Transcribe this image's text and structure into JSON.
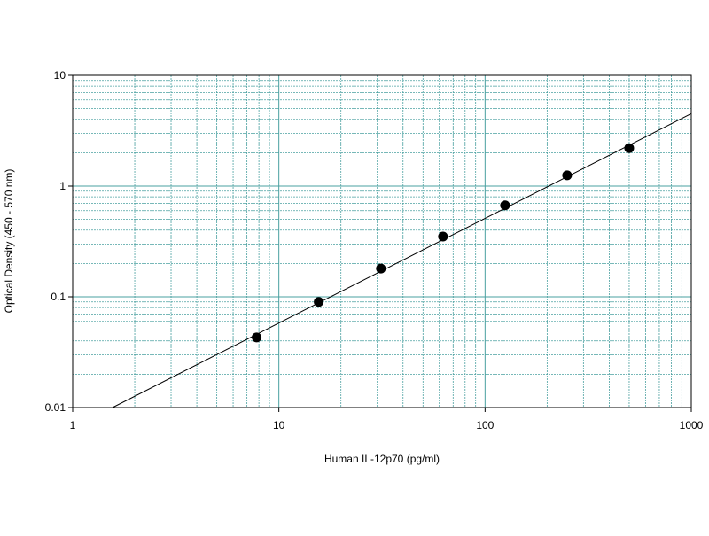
{
  "chart_data": {
    "type": "scatter",
    "x_label": "Human IL-12p70 (pg/ml)",
    "y_label": "Optical Density (450 - 570 nm)",
    "x": [
      7.8,
      15.6,
      31.25,
      62.5,
      125,
      250,
      500
    ],
    "values": [
      0.043,
      0.09,
      0.18,
      0.35,
      0.67,
      1.25,
      2.2
    ],
    "color": "#000000",
    "fit": {
      "x": [
        1.56,
        1000
      ],
      "values": [
        0.01,
        4.5
      ],
      "color": "#000000"
    },
    "xlim": [
      1,
      1000
    ],
    "ylim": [
      0.01,
      10
    ],
    "xticks": [
      1,
      10,
      100,
      1000
    ],
    "yticks": [
      0.01,
      0.1,
      1,
      10
    ],
    "xscale": "log",
    "yscale": "log",
    "grid": true,
    "minor_grid": true,
    "grid_color": "#4aa0a0"
  }
}
